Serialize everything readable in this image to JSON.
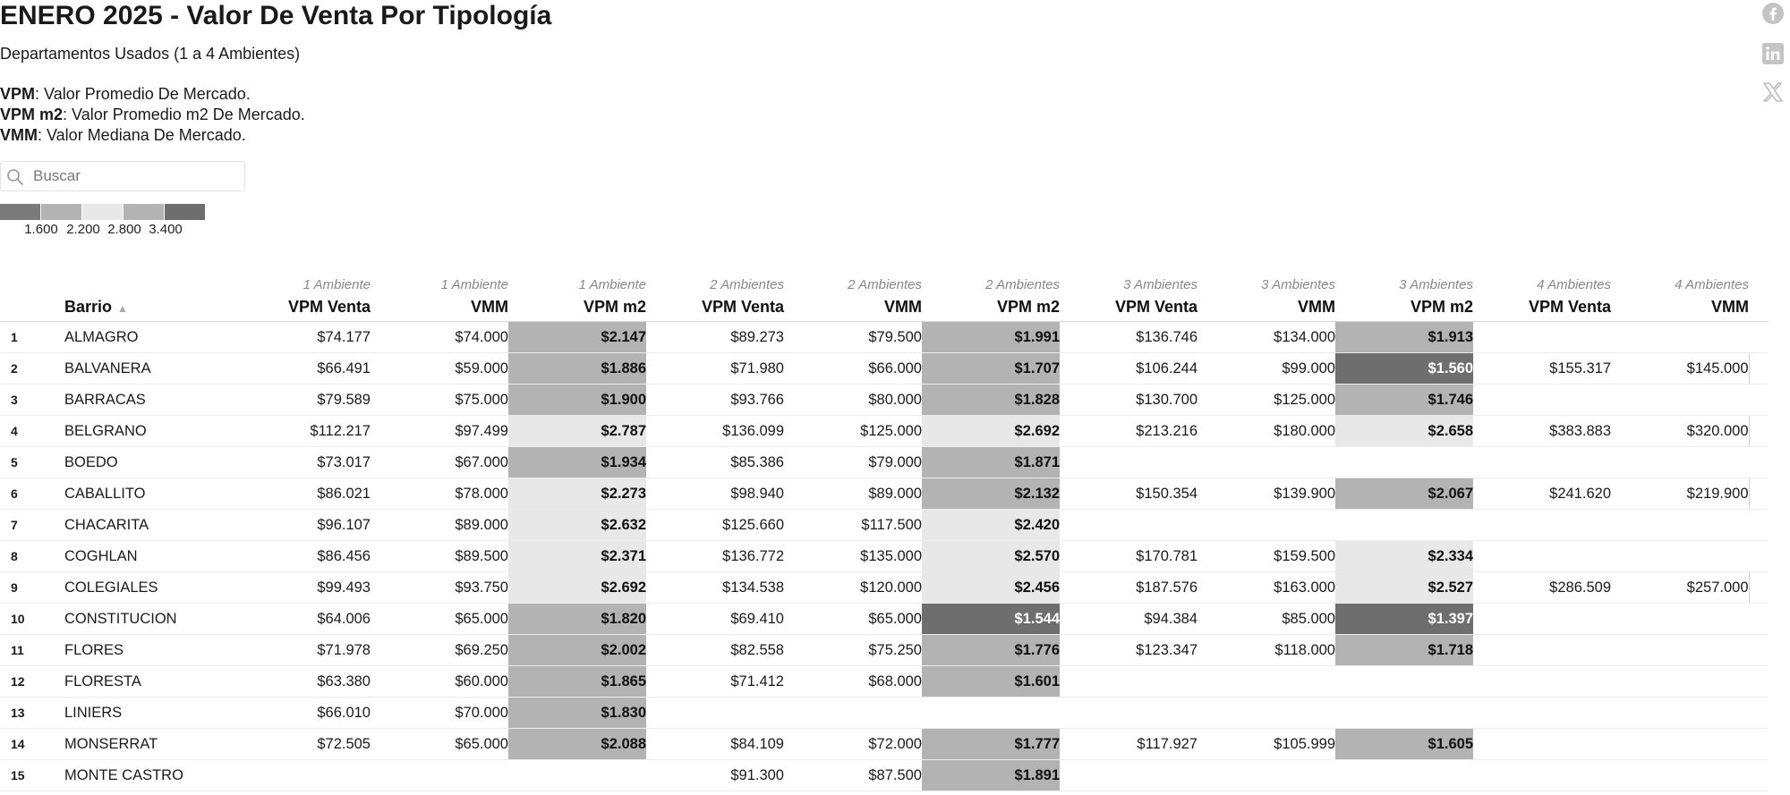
{
  "header": {
    "title": "ENERO 2025 - Valor De Venta Por Tipología",
    "subtitle": "Departamentos Usados (1 a 4 Ambientes)",
    "definitions": [
      {
        "term": "VPM",
        "text": ": Valor Promedio De Mercado."
      },
      {
        "term": "VPM m2",
        "text": ": Valor Promedio m2 De Mercado."
      },
      {
        "term": "VMM",
        "text": ": Valor Mediana De Mercado."
      }
    ]
  },
  "search": {
    "placeholder": "Buscar"
  },
  "legend": {
    "colors": [
      "#7a7a7a",
      "#b3b3b3",
      "#e8e8e8",
      "#b3b3b3",
      "#6e6e6e"
    ],
    "labels": [
      "1.600",
      "2.200",
      "2.800",
      "3.400"
    ]
  },
  "table": {
    "barrio_header": "Barrio",
    "groups": [
      "1 Ambiente",
      "1 Ambiente",
      "1 Ambiente",
      "2 Ambientes",
      "2 Ambientes",
      "2 Ambientes",
      "3 Ambientes",
      "3 Ambientes",
      "3 Ambientes",
      "4 Ambientes",
      "4 Ambientes"
    ],
    "columns": [
      "VPM Venta",
      "VMM",
      "VPM m2",
      "VPM Venta",
      "VMM",
      "VPM m2",
      "VPM Venta",
      "VMM",
      "VPM m2",
      "VPM Venta",
      "VMM"
    ],
    "rows": [
      {
        "n": "1",
        "barrio": "ALMAGRO",
        "v": [
          "$74.177",
          "$74.000",
          "$2.147",
          "$89.273",
          "$79.500",
          "$1.991",
          "$136.746",
          "$134.000",
          "$1.913",
          "",
          ""
        ]
      },
      {
        "n": "2",
        "barrio": "BALVANERA",
        "v": [
          "$66.491",
          "$59.000",
          "$1.886",
          "$71.980",
          "$66.000",
          "$1.707",
          "$106.244",
          "$99.000",
          "$1.560",
          "$155.317",
          "$145.000"
        ]
      },
      {
        "n": "3",
        "barrio": "BARRACAS",
        "v": [
          "$79.589",
          "$75.000",
          "$1.900",
          "$93.766",
          "$80.000",
          "$1.828",
          "$130.700",
          "$125.000",
          "$1.746",
          "",
          ""
        ]
      },
      {
        "n": "4",
        "barrio": "BELGRANO",
        "v": [
          "$112.217",
          "$97.499",
          "$2.787",
          "$136.099",
          "$125.000",
          "$2.692",
          "$213.216",
          "$180.000",
          "$2.658",
          "$383.883",
          "$320.000"
        ]
      },
      {
        "n": "5",
        "barrio": "BOEDO",
        "v": [
          "$73.017",
          "$67.000",
          "$1.934",
          "$85.386",
          "$79.000",
          "$1.871",
          "",
          "",
          "",
          "",
          ""
        ]
      },
      {
        "n": "6",
        "barrio": "CABALLITO",
        "v": [
          "$86.021",
          "$78.000",
          "$2.273",
          "$98.940",
          "$89.000",
          "$2.132",
          "$150.354",
          "$139.900",
          "$2.067",
          "$241.620",
          "$219.900"
        ]
      },
      {
        "n": "7",
        "barrio": "CHACARITA",
        "v": [
          "$96.107",
          "$89.000",
          "$2.632",
          "$125.660",
          "$117.500",
          "$2.420",
          "",
          "",
          "",
          "",
          ""
        ]
      },
      {
        "n": "8",
        "barrio": "COGHLAN",
        "v": [
          "$86.456",
          "$89.500",
          "$2.371",
          "$136.772",
          "$135.000",
          "$2.570",
          "$170.781",
          "$159.500",
          "$2.334",
          "",
          ""
        ]
      },
      {
        "n": "9",
        "barrio": "COLEGIALES",
        "v": [
          "$99.493",
          "$93.750",
          "$2.692",
          "$134.538",
          "$120.000",
          "$2.456",
          "$187.576",
          "$163.000",
          "$2.527",
          "$286.509",
          "$257.000"
        ]
      },
      {
        "n": "10",
        "barrio": "CONSTITUCION",
        "v": [
          "$64.006",
          "$65.000",
          "$1.820",
          "$69.410",
          "$65.000",
          "$1.544",
          "$94.384",
          "$85.000",
          "$1.397",
          "",
          ""
        ]
      },
      {
        "n": "11",
        "barrio": "FLORES",
        "v": [
          "$71.978",
          "$69.250",
          "$2.002",
          "$82.558",
          "$75.250",
          "$1.776",
          "$123.347",
          "$118.000",
          "$1.718",
          "",
          ""
        ]
      },
      {
        "n": "12",
        "barrio": "FLORESTA",
        "v": [
          "$63.380",
          "$60.000",
          "$1.865",
          "$71.412",
          "$68.000",
          "$1.601",
          "",
          "",
          "",
          "",
          ""
        ]
      },
      {
        "n": "13",
        "barrio": "LINIERS",
        "v": [
          "$66.010",
          "$70.000",
          "$1.830",
          "",
          "",
          "",
          "",
          "",
          "",
          "",
          ""
        ]
      },
      {
        "n": "14",
        "barrio": "MONSERRAT",
        "v": [
          "$72.505",
          "$65.000",
          "$2.088",
          "$84.109",
          "$72.000",
          "$1.777",
          "$117.927",
          "$105.999",
          "$1.605",
          "",
          ""
        ]
      },
      {
        "n": "15",
        "barrio": "MONTE CASTRO",
        "v": [
          "",
          "",
          "",
          "$91.300",
          "$87.500",
          "$1.891",
          "",
          "",
          "",
          "",
          ""
        ]
      }
    ]
  },
  "social": [
    "facebook-icon",
    "linkedin-icon",
    "x-icon"
  ]
}
